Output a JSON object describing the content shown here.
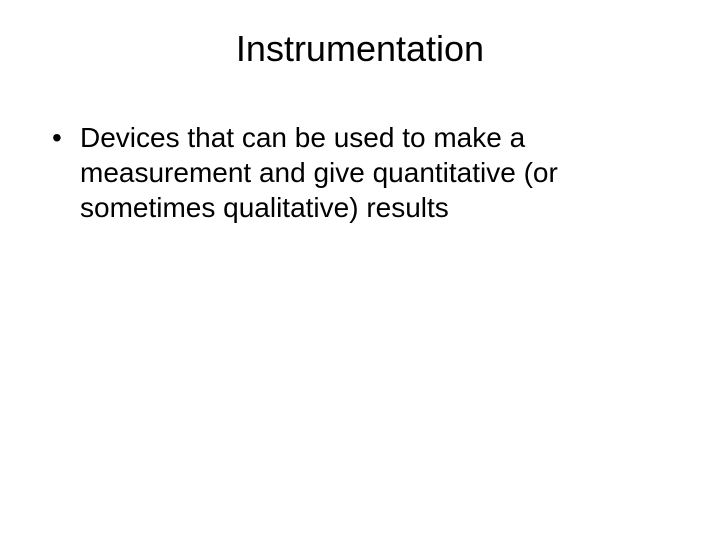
{
  "slide": {
    "title": "Instrumentation",
    "bullets": [
      {
        "marker": "•",
        "text": "Devices that can be used to make a measurement and give quantitative (or sometimes qualitative) results"
      }
    ]
  },
  "styling": {
    "background_color": "#ffffff",
    "text_color": "#000000",
    "title_fontsize": 36,
    "body_fontsize": 28,
    "font_family": "Arial"
  }
}
